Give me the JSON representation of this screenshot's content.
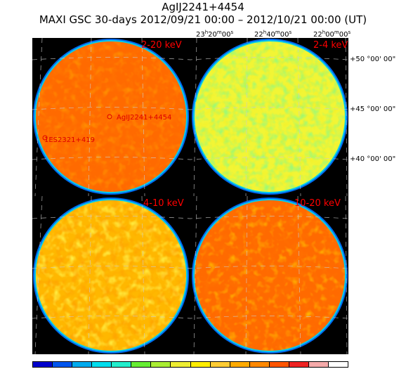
{
  "header": {
    "source": "AgIJ2241+4454",
    "subtitle": "MAXI GSC 30-days 2012/09/21 00:00 – 2012/10/21 00:00 (UT)"
  },
  "ra_labels": [
    {
      "h": "23",
      "m": "20",
      "s": "00"
    },
    {
      "h": "22",
      "m": "40",
      "s": "00"
    },
    {
      "h": "22",
      "m": "00",
      "s": "00"
    }
  ],
  "dec_labels": [
    "+50 °00' 00\"",
    "+45 °00' 00\"",
    "+40 °00' 00\""
  ],
  "panels": [
    {
      "band": "2-20 keV",
      "dominant": "#ff6a00"
    },
    {
      "band": "2-4 keV",
      "dominant": "#f2f535"
    },
    {
      "band": "4-10 keV",
      "dominant": "#ffb700"
    },
    {
      "band": "10-20 keV",
      "dominant": "#ff6a00"
    }
  ],
  "annotations": [
    {
      "label": "AgIJ2241+4454",
      "color": "#dd0000"
    },
    {
      "label": "1ES2321+419",
      "color": "#dd0000"
    }
  ],
  "colorbar": [
    "#0000cc",
    "#0055ee",
    "#00aaee",
    "#00ddee",
    "#22eecc",
    "#66ee33",
    "#aaee33",
    "#eeee33",
    "#ffee00",
    "#ffcc33",
    "#ffaa00",
    "#ff8800",
    "#ff5500",
    "#ee2222",
    "#f5aaaa",
    "#ffffff"
  ]
}
